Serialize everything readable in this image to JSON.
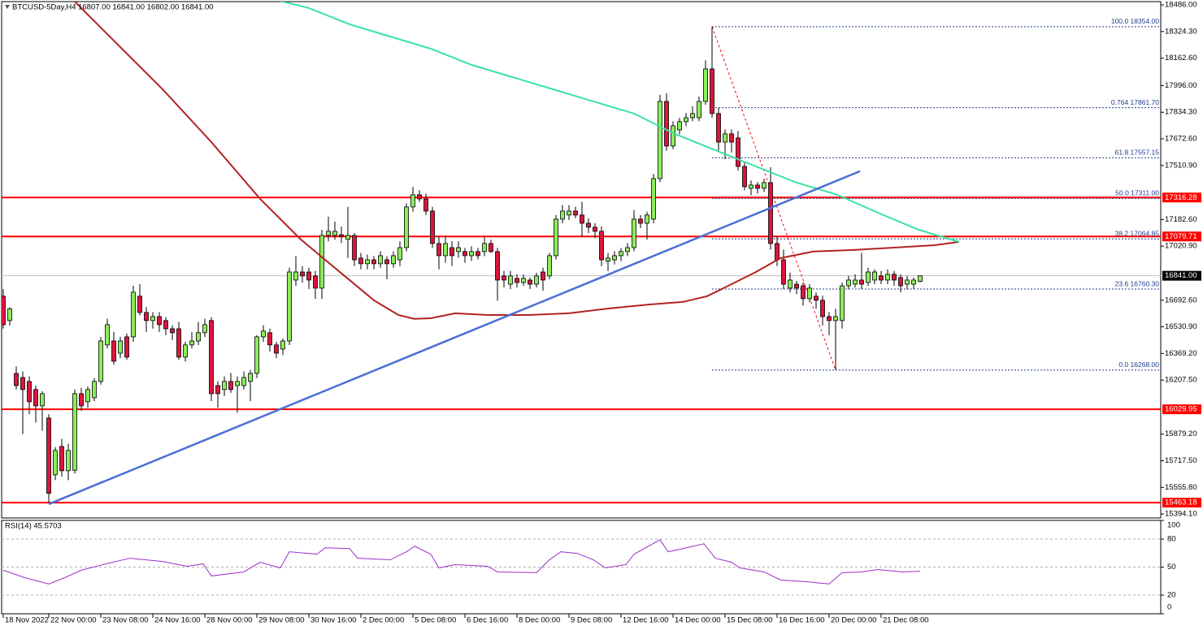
{
  "chart_data": [
    {
      "type": "candlestick",
      "title": "BTCUSD-5Day,H4  16807.00 16841.00 16802.00 16841.00",
      "xlim": [
        -0.25,
        178
      ],
      "ylim": [
        15370,
        18506
      ],
      "up_color": "#8ced5a",
      "down_color": "#dc143c",
      "candles": {
        "open": [
          16717,
          16569,
          16248,
          16223,
          16199,
          16150,
          16051,
          15977,
          15632,
          15804,
          15657,
          15660,
          16125,
          16076,
          16100,
          16199,
          16421,
          16445,
          16371,
          16470,
          16470,
          16717,
          16618,
          16569,
          16593,
          16569,
          16519,
          16519,
          16347,
          16421,
          16445,
          16495,
          16569,
          16174,
          16150,
          16199,
          16174,
          16174,
          16199,
          16248,
          16470,
          16495,
          16421,
          16396,
          16445,
          16815,
          16864,
          16864,
          16840,
          16766,
          17086,
          17086,
          17090,
          17062,
          17086,
          16948,
          16914,
          16938,
          16914,
          16938,
          16914,
          16938,
          17012,
          17259,
          17333,
          17308,
          17234,
          17037,
          16963,
          17012,
          16988,
          16988,
          16963,
          16988,
          16988,
          17037,
          16988,
          16840,
          16790,
          16825,
          16800,
          16815,
          16790,
          16864,
          16840,
          16963,
          17185,
          17210,
          17234,
          17210,
          17160,
          17136,
          17111,
          16929,
          16938,
          16963,
          16988,
          17012,
          17185,
          17160,
          17185,
          17431,
          17900,
          17629,
          17727,
          17777,
          17801,
          17801,
          17900,
          18097,
          17826,
          17653,
          17703,
          17678,
          17505,
          17372,
          17392,
          17372,
          17407,
          17037,
          16938,
          16766,
          16790,
          16780,
          16702,
          16717,
          16692,
          16593,
          16569,
          16569,
          16780,
          16790,
          16815,
          16800,
          16815,
          16840,
          16815,
          16850,
          16830,
          16790,
          16790,
          16807
        ],
        "high": [
          16760,
          16650,
          16290,
          16260,
          16230,
          16175,
          16140,
          16000,
          15800,
          15850,
          15820,
          16150,
          16160,
          16170,
          16220,
          16470,
          16580,
          16500,
          16470,
          16490,
          16780,
          16790,
          16650,
          16620,
          16620,
          16590,
          16540,
          16560,
          16440,
          16500,
          16560,
          16580,
          16590,
          16200,
          16230,
          16250,
          16230,
          16260,
          16270,
          16480,
          16540,
          16520,
          16440,
          16460,
          16890,
          16960,
          16900,
          16890,
          16870,
          17120,
          17200,
          17170,
          17140,
          17260,
          17100,
          16980,
          16970,
          16960,
          16990,
          16960,
          16990,
          17050,
          17280,
          17380,
          17360,
          17340,
          17260,
          17080,
          17080,
          17050,
          17050,
          17010,
          17020,
          17010,
          17080,
          17060,
          17010,
          16870,
          16870,
          16850,
          16850,
          16830,
          16860,
          16890,
          16980,
          17210,
          17270,
          17270,
          17260,
          17290,
          17190,
          17160,
          17140,
          16980,
          16990,
          17010,
          17040,
          17240,
          17210,
          17230,
          17460,
          17940,
          17950,
          17780,
          17800,
          17830,
          17870,
          17930,
          18150,
          18354,
          17860,
          17730,
          17730,
          17720,
          17530,
          17420,
          17410,
          17430,
          17500,
          17080,
          17000,
          16860,
          16810,
          16800,
          16790,
          16740,
          16720,
          16620,
          16640,
          16800,
          16840,
          16850,
          16980,
          16890,
          16880,
          16870,
          16880,
          16870,
          16850,
          16840,
          16830,
          16841
        ],
        "low": [
          16520,
          16540,
          16150,
          15880,
          16000,
          15950,
          15900,
          15463,
          15600,
          15620,
          15600,
          15640,
          16020,
          16040,
          16080,
          16180,
          16400,
          16300,
          16340,
          16330,
          16440,
          16600,
          16500,
          16520,
          16500,
          16480,
          16450,
          16330,
          16320,
          16400,
          16420,
          16470,
          16080,
          16040,
          16110,
          16130,
          16010,
          16150,
          16080,
          16220,
          16440,
          16380,
          16340,
          16360,
          16420,
          16780,
          16800,
          16760,
          16700,
          16700,
          17050,
          17060,
          17040,
          16950,
          16900,
          16880,
          16880,
          16880,
          16890,
          16820,
          16890,
          16900,
          16990,
          17230,
          17290,
          17210,
          17010,
          16880,
          16920,
          16900,
          16950,
          16920,
          16930,
          16940,
          16960,
          16980,
          16690,
          16770,
          16760,
          16770,
          16780,
          16760,
          16770,
          16750,
          16820,
          16940,
          17160,
          17180,
          17190,
          17080,
          17100,
          17070,
          16900,
          16870,
          16910,
          16930,
          16960,
          16990,
          17130,
          17060,
          17160,
          17410,
          17600,
          17610,
          17700,
          17750,
          17780,
          17780,
          17880,
          17800,
          17600,
          17550,
          17590,
          17480,
          17360,
          17330,
          17340,
          17350,
          17000,
          16900,
          16760,
          16740,
          16730,
          16660,
          16680,
          16640,
          16540,
          16480,
          16268,
          16520,
          16760,
          16770,
          16760,
          16780,
          16790,
          16790,
          16790,
          16780,
          16740,
          16760,
          16760,
          16802
        ],
        "close": [
          16544,
          16640,
          16174,
          16150,
          16076,
          16051,
          16125,
          15520,
          15780,
          15657,
          15780,
          16125,
          16051,
          16150,
          16199,
          16445,
          16544,
          16322,
          16445,
          16347,
          16741,
          16618,
          16569,
          16593,
          16544,
          16519,
          16495,
          16347,
          16421,
          16445,
          16495,
          16544,
          16125,
          16125,
          16199,
          16150,
          16199,
          16223,
          16248,
          16470,
          16505,
          16421,
          16371,
          16445,
          16864,
          16864,
          16840,
          16815,
          16766,
          17086,
          17111,
          17111,
          17080,
          17086,
          16938,
          16914,
          16938,
          16914,
          16963,
          16914,
          16963,
          17012,
          17259,
          17333,
          17308,
          17234,
          17037,
          16963,
          17037,
          16963,
          17012,
          16963,
          16988,
          16963,
          17037,
          16988,
          16815,
          16815,
          16840,
          16800,
          16825,
          16790,
          16840,
          16815,
          16963,
          17185,
          17234,
          17234,
          17210,
          17160,
          17136,
          17111,
          16938,
          16948,
          16963,
          16988,
          17012,
          17185,
          17160,
          17210,
          17431,
          17900,
          17629,
          17752,
          17777,
          17801,
          17826,
          17900,
          18097,
          17826,
          17653,
          17703,
          17653,
          17505,
          17382,
          17392,
          17372,
          17407,
          17037,
          16938,
          16790,
          16815,
          16766,
          16702,
          16766,
          16692,
          16593,
          16569,
          16593,
          16780,
          16815,
          16815,
          16790,
          16864,
          16864,
          16815,
          16850,
          16815,
          16780,
          16815,
          16815,
          16841
        ]
      },
      "series": [
        {
          "color": "#b22222",
          "x": [
            10.75,
            18.25,
            24.5,
            32,
            39.5,
            45.75,
            49.5,
            53.25,
            57,
            60.75,
            63.25,
            65.75,
            69.5,
            74.5,
            80.75,
            87,
            93.25,
            99.5,
            104.5,
            108.25,
            112,
            115.75,
            119.5,
            124.5,
            130.75,
            137,
            143.25,
            147
          ],
          "values": [
            18516,
            18220,
            17974,
            17653,
            17308,
            17062,
            16938,
            16815,
            16692,
            16603,
            16579,
            16583,
            16613,
            16603,
            16603,
            16613,
            16643,
            16667,
            16682,
            16717,
            16790,
            16864,
            16948,
            16988,
            16998,
            17012,
            17027,
            17047
          ]
        },
        {
          "color": "#3ae3a2",
          "x": [
            42,
            47,
            53.25,
            59.5,
            65.75,
            72,
            78.25,
            84.5,
            90.75,
            97,
            103.25,
            109.5,
            115.75,
            122,
            128.25,
            134.5,
            140.75,
            147
          ],
          "values": [
            18516,
            18467,
            18368,
            18294,
            18220,
            18122,
            18048,
            17974,
            17900,
            17826,
            17703,
            17604,
            17505,
            17407,
            17333,
            17224,
            17121,
            17047
          ]
        }
      ],
      "trendline": {
        "color": "#4a6fd6",
        "x": [
          7,
          131.75
        ],
        "values": [
          15454,
          17476
        ]
      },
      "levels": [
        {
          "value": 17316.28,
          "label": "17316.28"
        },
        {
          "value": 17079.71,
          "label": "17079.71"
        },
        {
          "value": 16029.95,
          "label": "16029.95"
        },
        {
          "value": 15463.18,
          "label": "15463.18"
        }
      ],
      "level_color": "#ff0000",
      "current_price": {
        "value": 16841,
        "label": "16841.00"
      },
      "fib_x": [
        109,
        128
      ],
      "fib_color": "#1f3d8f",
      "fib_levels": [
        {
          "value": 18354,
          "label": "100.0 18354.00"
        },
        {
          "value": 17861.7,
          "label": "0.764 17861.70"
        },
        {
          "value": 17557.15,
          "label": "61.8 17557.15"
        },
        {
          "value": 17311,
          "label": "50.0 17311.00"
        },
        {
          "value": 17064.85,
          "label": "38.2 17064.85"
        },
        {
          "value": 16760.3,
          "label": "23.6 16760.30"
        },
        {
          "value": 16268,
          "label": "0.0 16268.00"
        }
      ],
      "yticks": [
        {
          "value": 18486,
          "label": "18486.00"
        },
        {
          "value": 18324.3,
          "label": "18324.30"
        },
        {
          "value": 18162.6,
          "label": "18162.60"
        },
        {
          "value": 17996,
          "label": "17996.00"
        },
        {
          "value": 17834.3,
          "label": "17834.30"
        },
        {
          "value": 17672.6,
          "label": "17672.60"
        },
        {
          "value": 17510.9,
          "label": "17510.90"
        },
        {
          "value": 17182.6,
          "label": "17182.60"
        },
        {
          "value": 17020.9,
          "label": "17020.90"
        },
        {
          "value": 16692.6,
          "label": "16692.60"
        },
        {
          "value": 16530.9,
          "label": "16530.90"
        },
        {
          "value": 16369.2,
          "label": "16369.20"
        },
        {
          "value": 16207.5,
          "label": "16207.50"
        },
        {
          "value": 15879.2,
          "label": "15879.20"
        },
        {
          "value": 15717.5,
          "label": "15717.50"
        },
        {
          "value": 15555.8,
          "label": "15555.80"
        },
        {
          "value": 15394.1,
          "label": "15394.10"
        }
      ],
      "xticks": [
        {
          "value": 0,
          "label": "18 Nov 2022"
        },
        {
          "value": 7,
          "label": "22 Nov 00:00"
        },
        {
          "value": 15,
          "label": "23 Nov 08:00"
        },
        {
          "value": 23,
          "label": "24 Nov 16:00"
        },
        {
          "value": 31,
          "label": "28 Nov 00:00"
        },
        {
          "value": 39,
          "label": "29 Nov 08:00"
        },
        {
          "value": 47,
          "label": "30 Nov 16:00"
        },
        {
          "value": 55,
          "label": "2 Dec 00:00"
        },
        {
          "value": 63,
          "label": "5 Dec 08:00"
        },
        {
          "value": 71,
          "label": "6 Dec 16:00"
        },
        {
          "value": 79,
          "label": "8 Dec 00:00"
        },
        {
          "value": 87,
          "label": "9 Dec 08:00"
        },
        {
          "value": 95,
          "label": "12 Dec 16:00"
        },
        {
          "value": 103,
          "label": "14 Dec 00:00"
        },
        {
          "value": 111,
          "label": "15 Dec 08:00"
        },
        {
          "value": 119,
          "label": "16 Dec 16:00"
        },
        {
          "value": 127,
          "label": "20 Dec 00:00"
        },
        {
          "value": 135,
          "label": "21 Dec 08:00"
        }
      ]
    },
    {
      "type": "line",
      "title": "RSI(14) 45.5703",
      "color": "#9b30c8",
      "x": [
        0,
        3.25,
        7,
        9.5,
        12,
        15.75,
        19.5,
        24.5,
        28.25,
        30.75,
        32,
        37,
        39.5,
        42.6,
        44,
        48.25,
        49.5,
        53.25,
        54.5,
        59.5,
        62,
        63.25,
        65.75,
        67,
        69.5,
        74.5,
        76,
        82,
        84,
        85.75,
        88.25,
        90.75,
        92.6,
        95.75,
        97,
        101,
        102.25,
        104.5,
        107.75,
        109.5,
        112,
        113.25,
        117,
        119.5,
        123.25,
        127,
        129,
        132,
        134.5,
        138.25,
        141
      ],
      "values": [
        46.6,
        38.8,
        31.9,
        38.8,
        46.6,
        53.4,
        59.5,
        56,
        50.9,
        53.4,
        40.5,
        44.8,
        55.2,
        49.1,
        66.4,
        63.8,
        70.7,
        69.8,
        59.5,
        57.8,
        66.4,
        72.4,
        63.8,
        49.1,
        52.6,
        50.9,
        44.8,
        44,
        57.8,
        66.4,
        64.7,
        57.8,
        49.1,
        52.6,
        63.8,
        79.3,
        66.4,
        69.8,
        75,
        59.5,
        55.2,
        49.1,
        44.8,
        36.2,
        34.5,
        31.9,
        44,
        44.8,
        47.4,
        44.8,
        45.57
      ],
      "ylim": [
        0,
        100
      ],
      "yticks": [
        100,
        80,
        50,
        20,
        0
      ],
      "grid": true
    }
  ]
}
